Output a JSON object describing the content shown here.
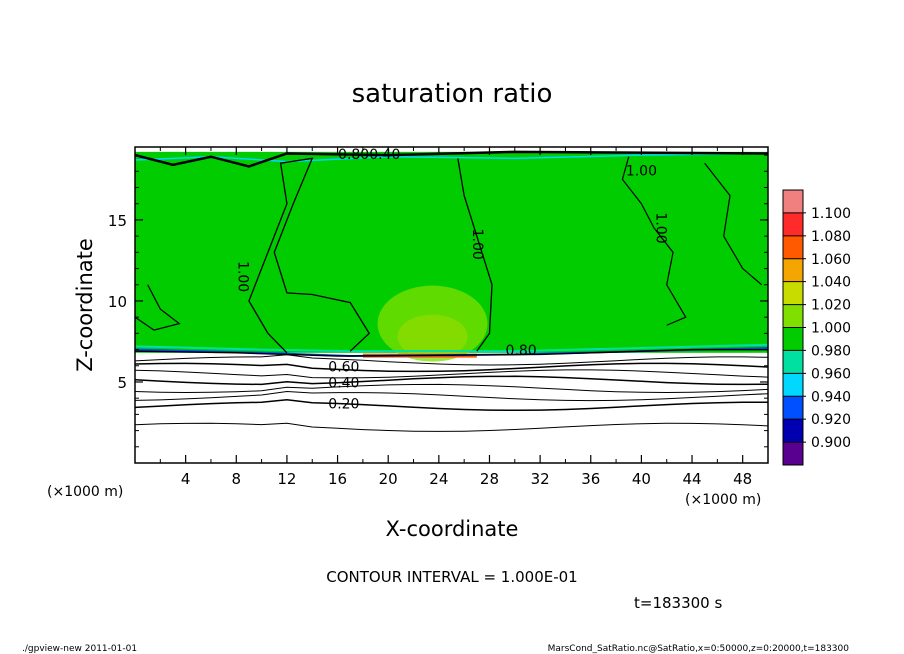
{
  "chart_data": {
    "type": "heatmap",
    "title": "saturation ratio",
    "xlabel": "X-coordinate",
    "ylabel": "Z-coordinate",
    "x_unit_left": "(×1000 m)",
    "x_unit_right": "(×1000 m)",
    "x_ticks": [
      "4",
      "8",
      "12",
      "16",
      "20",
      "24",
      "28",
      "32",
      "36",
      "40",
      "44",
      "48"
    ],
    "x_tick_values": [
      4,
      8,
      12,
      16,
      20,
      24,
      28,
      32,
      36,
      40,
      44,
      48
    ],
    "y_ticks": [
      "5",
      "10",
      "15"
    ],
    "y_tick_values": [
      5,
      10,
      15
    ],
    "xlim": [
      0,
      50
    ],
    "ylim": [
      0,
      19.5
    ],
    "colorbar": {
      "labels": [
        "1.100",
        "1.080",
        "1.060",
        "1.040",
        "1.020",
        "1.000",
        "0.980",
        "0.960",
        "0.940",
        "0.920",
        "0.900"
      ],
      "colors": [
        "#f08080",
        "#ff2a2a",
        "#ff5a00",
        "#f5a500",
        "#c8dc00",
        "#7fe000",
        "#00cc00",
        "#00e0a0",
        "#00d8ff",
        "#0050ff",
        "#0000b0",
        "#5a0090"
      ]
    },
    "field": {
      "upper_value": 1.0,
      "moist_layer_bottom_z": 6.8,
      "bottom_value": 0.1
    },
    "contour_labels": [
      {
        "text": "1.00",
        "x": 8.5,
        "z": 11.5
      },
      {
        "text": "1.00",
        "x": 27.0,
        "z": 13.5
      },
      {
        "text": "1.00",
        "x": 40.0,
        "z": 18.0
      },
      {
        "text": "1.00",
        "x": 41.5,
        "z": 14.5
      },
      {
        "text": "0.60",
        "x": 16.5,
        "z": 5.9
      },
      {
        "text": "0.40",
        "x": 16.5,
        "z": 4.9
      },
      {
        "text": "0.20",
        "x": 16.5,
        "z": 3.6
      },
      {
        "text": "0.80",
        "x": 30.5,
        "z": 6.9
      },
      {
        "text": "0.800.40",
        "x": 18.5,
        "z": 19.0
      }
    ],
    "contour_interval_text": "CONTOUR INTERVAL = 1.000E-01",
    "time_text": "t=183300 s"
  },
  "footer": {
    "left": "./gpview-new   2011-01-01",
    "right": "MarsCond_SatRatio.nc@SatRatio,x=0:50000,z=0:20000,t=183300"
  }
}
